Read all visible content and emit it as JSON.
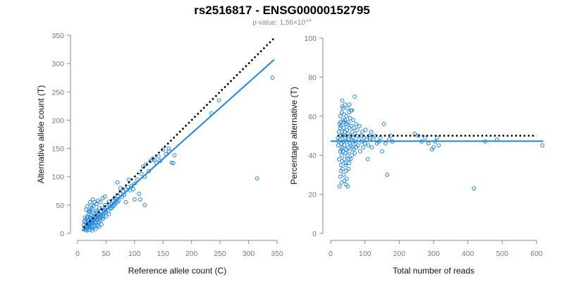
{
  "figure": {
    "title": "rs2516817 - ENSG00000152795",
    "subtitle_prefix": "p-value: 1.56×10",
    "subtitle_exponent": "-14"
  },
  "colors": {
    "points": "#1e88e5",
    "fit_line": "#1e88e5",
    "reference_line": "#000000"
  },
  "chart_data": [
    {
      "type": "scatter",
      "xlabel": "Reference allele count (C)",
      "ylabel": "Alternative allele count (T)",
      "xlim": [
        0,
        350
      ],
      "ylim": [
        0,
        350
      ],
      "xticks": [
        0,
        50,
        100,
        150,
        200,
        250,
        300,
        350
      ],
      "yticks": [
        0,
        50,
        100,
        150,
        200,
        250,
        300,
        350
      ],
      "grid": false,
      "lines": [
        {
          "style": "dotted",
          "color": "#000000",
          "x": [
            10,
            345
          ],
          "y": [
            10,
            345
          ]
        },
        {
          "style": "solid",
          "color": "#1e88e5",
          "x": [
            8,
            345
          ],
          "y": [
            4,
            307
          ]
        }
      ],
      "points": [
        [
          12,
          8
        ],
        [
          14,
          12
        ],
        [
          15,
          10
        ],
        [
          16,
          18
        ],
        [
          17,
          14
        ],
        [
          18,
          22
        ],
        [
          18,
          9
        ],
        [
          19,
          16
        ],
        [
          20,
          24
        ],
        [
          20,
          13
        ],
        [
          21,
          19
        ],
        [
          22,
          28
        ],
        [
          22,
          15
        ],
        [
          23,
          21
        ],
        [
          24,
          18
        ],
        [
          24,
          32
        ],
        [
          25,
          26
        ],
        [
          25,
          12
        ],
        [
          26,
          20
        ],
        [
          27,
          30
        ],
        [
          27,
          17
        ],
        [
          28,
          24
        ],
        [
          28,
          36
        ],
        [
          29,
          22
        ],
        [
          30,
          28
        ],
        [
          30,
          15
        ],
        [
          31,
          34
        ],
        [
          31,
          20
        ],
        [
          32,
          26
        ],
        [
          33,
          40
        ],
        [
          33,
          18
        ],
        [
          34,
          30
        ],
        [
          35,
          24
        ],
        [
          35,
          38
        ],
        [
          36,
          28
        ],
        [
          37,
          20
        ],
        [
          38,
          34
        ],
        [
          38,
          45
        ],
        [
          39,
          26
        ],
        [
          40,
          32
        ],
        [
          41,
          38
        ],
        [
          42,
          28
        ],
        [
          43,
          44
        ],
        [
          44,
          34
        ],
        [
          45,
          30
        ],
        [
          46,
          40
        ],
        [
          47,
          36
        ],
        [
          48,
          50
        ],
        [
          49,
          42
        ],
        [
          50,
          38
        ],
        [
          52,
          46
        ],
        [
          54,
          40
        ],
        [
          55,
          56
        ],
        [
          57,
          48
        ],
        [
          58,
          44
        ],
        [
          60,
          52
        ],
        [
          62,
          58
        ],
        [
          63,
          48
        ],
        [
          65,
          62
        ],
        [
          66,
          54
        ],
        [
          68,
          60
        ],
        [
          70,
          66
        ],
        [
          72,
          58
        ],
        [
          75,
          70
        ],
        [
          78,
          64
        ],
        [
          80,
          74
        ],
        [
          82,
          68
        ],
        [
          85,
          78
        ],
        [
          88,
          82
        ],
        [
          92,
          76
        ],
        [
          13,
          20
        ],
        [
          15,
          25
        ],
        [
          17,
          28
        ],
        [
          19,
          35
        ],
        [
          21,
          38
        ],
        [
          14,
          6
        ],
        [
          16,
          5
        ],
        [
          22,
          10
        ],
        [
          25,
          8
        ],
        [
          30,
          12
        ],
        [
          35,
          14
        ],
        [
          40,
          22
        ],
        [
          45,
          26
        ],
        [
          50,
          30
        ],
        [
          55,
          34
        ],
        [
          18,
          30
        ],
        [
          20,
          40
        ],
        [
          23,
          42
        ],
        [
          26,
          44
        ],
        [
          28,
          48
        ],
        [
          11,
          15
        ],
        [
          12,
          22
        ],
        [
          13,
          28
        ],
        [
          24,
          50
        ],
        [
          30,
          55
        ],
        [
          33,
          52
        ],
        [
          36,
          58
        ],
        [
          40,
          55
        ],
        [
          44,
          62
        ],
        [
          48,
          65
        ],
        [
          20,
          6
        ],
        [
          26,
          5
        ],
        [
          32,
          8
        ],
        [
          38,
          12
        ],
        [
          42,
          16
        ],
        [
          60,
          45
        ],
        [
          65,
          50
        ],
        [
          70,
          55
        ],
        [
          75,
          80
        ],
        [
          95,
          84
        ],
        [
          98,
          78
        ],
        [
          100,
          88
        ],
        [
          105,
          95
        ],
        [
          108,
          70
        ],
        [
          110,
          60
        ],
        [
          112,
          105
        ],
        [
          115,
          118
        ],
        [
          118,
          100
        ],
        [
          120,
          122
        ],
        [
          125,
          110
        ],
        [
          128,
          128
        ],
        [
          132,
          132
        ],
        [
          135,
          130
        ],
        [
          138,
          125
        ],
        [
          142,
          136
        ],
        [
          145,
          128
        ],
        [
          150,
          148
        ],
        [
          155,
          140
        ],
        [
          160,
          145
        ],
        [
          165,
          125
        ],
        [
          170,
          138
        ],
        [
          168,
          124
        ],
        [
          118,
          50
        ],
        [
          100,
          60
        ],
        [
          85,
          55
        ],
        [
          70,
          90
        ],
        [
          90,
          95
        ],
        [
          160,
          150
        ],
        [
          235,
          212
        ],
        [
          248,
          235
        ],
        [
          315,
          97
        ],
        [
          342,
          275
        ],
        [
          15,
          42
        ],
        [
          17,
          48
        ],
        [
          22,
          55
        ],
        [
          27,
          60
        ]
      ]
    },
    {
      "type": "scatter",
      "xlabel": "Total number of reads",
      "ylabel": "Percentage alternative (T)",
      "xlim": [
        0,
        600
      ],
      "ylim": [
        0,
        100
      ],
      "xticks": [
        0,
        100,
        200,
        300,
        400,
        500,
        600
      ],
      "yticks": [
        0,
        20,
        40,
        60,
        80,
        100
      ],
      "grid": false,
      "lines": [
        {
          "style": "dotted",
          "color": "#000000",
          "x": [
            20,
            600
          ],
          "y": [
            50,
            50
          ]
        },
        {
          "style": "solid",
          "color": "#1e88e5",
          "x": [
            0,
            620
          ],
          "y": [
            47.2,
            47.2
          ]
        }
      ],
      "points": [
        [
          22,
          45
        ],
        [
          24,
          52
        ],
        [
          25,
          38
        ],
        [
          26,
          56
        ],
        [
          27,
          48
        ],
        [
          28,
          42
        ],
        [
          28,
          60
        ],
        [
          29,
          50
        ],
        [
          30,
          35
        ],
        [
          30,
          55
        ],
        [
          31,
          46
        ],
        [
          32,
          62
        ],
        [
          32,
          40
        ],
        [
          33,
          52
        ],
        [
          34,
          44
        ],
        [
          34,
          65
        ],
        [
          35,
          33
        ],
        [
          35,
          50
        ],
        [
          36,
          58
        ],
        [
          36,
          42
        ],
        [
          37,
          47
        ],
        [
          38,
          54
        ],
        [
          38,
          30
        ],
        [
          39,
          61
        ],
        [
          40,
          45
        ],
        [
          40,
          38
        ],
        [
          41,
          52
        ],
        [
          42,
          49
        ],
        [
          42,
          66
        ],
        [
          43,
          41
        ],
        [
          44,
          56
        ],
        [
          44,
          36
        ],
        [
          45,
          50
        ],
        [
          46,
          43
        ],
        [
          46,
          60
        ],
        [
          47,
          28
        ],
        [
          47,
          53
        ],
        [
          48,
          47
        ],
        [
          49,
          64
        ],
        [
          49,
          40
        ],
        [
          50,
          51
        ],
        [
          51,
          44
        ],
        [
          52,
          57
        ],
        [
          52,
          33
        ],
        [
          53,
          48
        ],
        [
          54,
          62
        ],
        [
          55,
          42
        ],
        [
          55,
          54
        ],
        [
          56,
          46
        ],
        [
          57,
          59
        ],
        [
          58,
          38
        ],
        [
          58,
          50
        ],
        [
          59,
          45
        ],
        [
          60,
          55
        ],
        [
          61,
          48
        ],
        [
          62,
          40
        ],
        [
          62,
          63
        ],
        [
          63,
          52
        ],
        [
          64,
          44
        ],
        [
          65,
          49
        ],
        [
          66,
          58
        ],
        [
          67,
          43
        ],
        [
          68,
          54
        ],
        [
          69,
          47
        ],
        [
          70,
          70
        ],
        [
          70,
          41
        ],
        [
          71,
          51
        ],
        [
          72,
          46
        ],
        [
          74,
          56
        ],
        [
          75,
          44
        ],
        [
          76,
          50
        ],
        [
          78,
          53
        ],
        [
          80,
          45
        ],
        [
          82,
          48
        ],
        [
          84,
          55
        ],
        [
          86,
          42
        ],
        [
          88,
          50
        ],
        [
          90,
          47
        ],
        [
          92,
          52
        ],
        [
          95,
          44
        ],
        [
          98,
          49
        ],
        [
          100,
          46
        ],
        [
          102,
          53
        ],
        [
          105,
          48
        ],
        [
          108,
          38
        ],
        [
          110,
          45
        ],
        [
          112,
          50
        ],
        [
          115,
          49
        ],
        [
          118,
          52
        ],
        [
          120,
          44
        ],
        [
          125,
          48
        ],
        [
          130,
          50
        ],
        [
          135,
          46
        ],
        [
          140,
          47
        ],
        [
          145,
          49
        ],
        [
          150,
          42
        ],
        [
          155,
          56
        ],
        [
          160,
          46
        ],
        [
          165,
          30
        ],
        [
          170,
          48
        ],
        [
          175,
          50
        ],
        [
          180,
          47
        ],
        [
          245,
          51
        ],
        [
          255,
          50
        ],
        [
          265,
          47
        ],
        [
          275,
          49
        ],
        [
          285,
          46
        ],
        [
          295,
          43
        ],
        [
          300,
          44
        ],
        [
          305,
          47
        ],
        [
          310,
          49
        ],
        [
          315,
          45
        ],
        [
          418,
          23
        ],
        [
          450,
          47
        ],
        [
          485,
          48
        ],
        [
          617,
          45
        ],
        [
          26,
          24
        ],
        [
          28,
          29
        ],
        [
          30,
          32
        ],
        [
          32,
          26
        ],
        [
          34,
          68
        ],
        [
          36,
          64
        ],
        [
          40,
          27
        ],
        [
          45,
          25
        ],
        [
          50,
          24
        ],
        [
          55,
          66
        ],
        [
          60,
          63
        ],
        [
          42,
          58
        ],
        [
          38,
          57
        ],
        [
          48,
          56
        ],
        [
          44,
          35
        ],
        [
          46,
          32
        ],
        [
          52,
          38
        ],
        [
          54,
          36
        ],
        [
          33,
          37
        ],
        [
          31,
          43
        ],
        [
          29,
          57
        ],
        [
          27,
          54
        ],
        [
          23,
          47
        ],
        [
          21,
          49
        ]
      ]
    }
  ]
}
